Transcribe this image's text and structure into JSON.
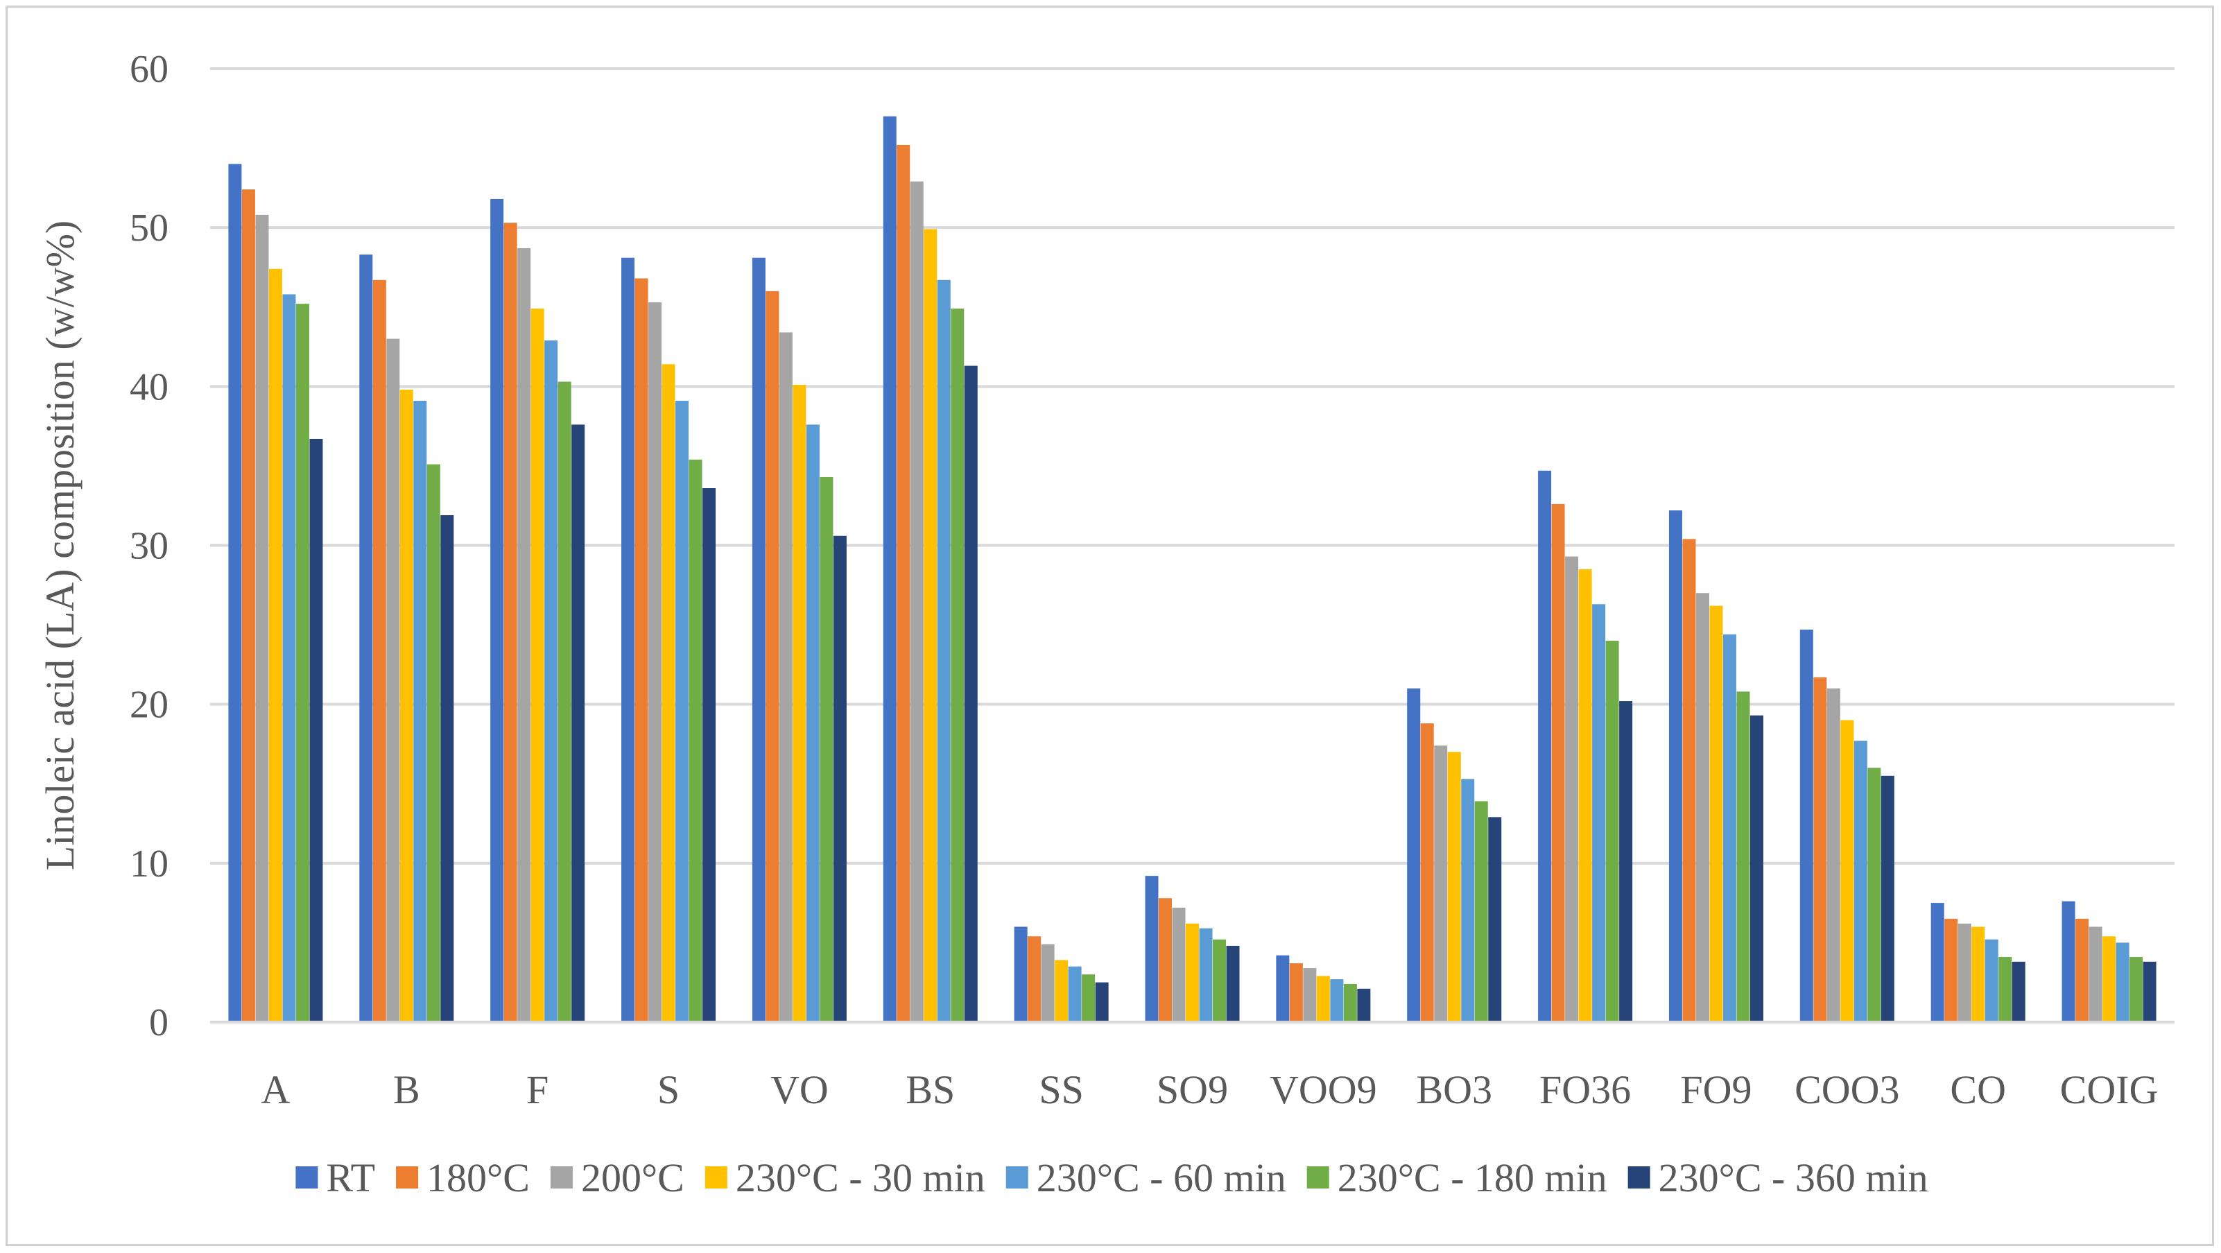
{
  "chart_data": {
    "type": "bar",
    "title": "",
    "xlabel": "",
    "ylabel": "Linoleic acid (LA) composition (w/w%)",
    "ylim": [
      0,
      60
    ],
    "yticks": [
      0,
      10,
      20,
      30,
      40,
      50,
      60
    ],
    "grid": true,
    "legend_position": "bottom",
    "categories": [
      "A",
      "B",
      "F",
      "S",
      "VO",
      "BS",
      "SS",
      "SO9",
      "VOO9",
      "BO3",
      "FO36",
      "FO9",
      "COO3",
      "CO",
      "COIG"
    ],
    "series": [
      {
        "name": "RT",
        "color": "#4472C4",
        "values": [
          54.0,
          48.3,
          51.8,
          48.1,
          48.1,
          57.0,
          6.0,
          9.2,
          4.2,
          21.0,
          34.7,
          32.2,
          24.7,
          7.5,
          7.6
        ]
      },
      {
        "name": "180°C",
        "color": "#ED7D31",
        "values": [
          52.4,
          46.7,
          50.3,
          46.8,
          46.0,
          55.2,
          5.4,
          7.8,
          3.7,
          18.8,
          32.6,
          30.4,
          21.7,
          6.5,
          6.5
        ]
      },
      {
        "name": "200°C",
        "color": "#A5A5A5",
        "values": [
          50.8,
          43.0,
          48.7,
          45.3,
          43.4,
          52.9,
          4.9,
          7.2,
          3.4,
          17.4,
          29.3,
          27.0,
          21.0,
          6.2,
          6.0
        ]
      },
      {
        "name": "230°C - 30 min",
        "color": "#FFC000",
        "values": [
          47.4,
          39.8,
          44.9,
          41.4,
          40.1,
          49.9,
          3.9,
          6.2,
          2.9,
          17.0,
          28.5,
          26.2,
          19.0,
          6.0,
          5.4
        ]
      },
      {
        "name": "230°C - 60 min",
        "color": "#5B9BD5",
        "values": [
          45.8,
          39.1,
          42.9,
          39.1,
          37.6,
          46.7,
          3.5,
          5.9,
          2.7,
          15.3,
          26.3,
          24.4,
          17.7,
          5.2,
          5.0
        ]
      },
      {
        "name": "230°C - 180 min",
        "color": "#70AD47",
        "values": [
          45.2,
          35.1,
          40.3,
          35.4,
          34.3,
          44.9,
          3.0,
          5.2,
          2.4,
          13.9,
          24.0,
          20.8,
          16.0,
          4.1,
          4.1
        ]
      },
      {
        "name": "230°C - 360 min",
        "color": "#264478",
        "values": [
          36.7,
          31.9,
          37.6,
          33.6,
          30.6,
          41.3,
          2.5,
          4.8,
          2.1,
          12.9,
          20.2,
          19.3,
          15.5,
          3.8,
          3.8
        ]
      }
    ]
  }
}
